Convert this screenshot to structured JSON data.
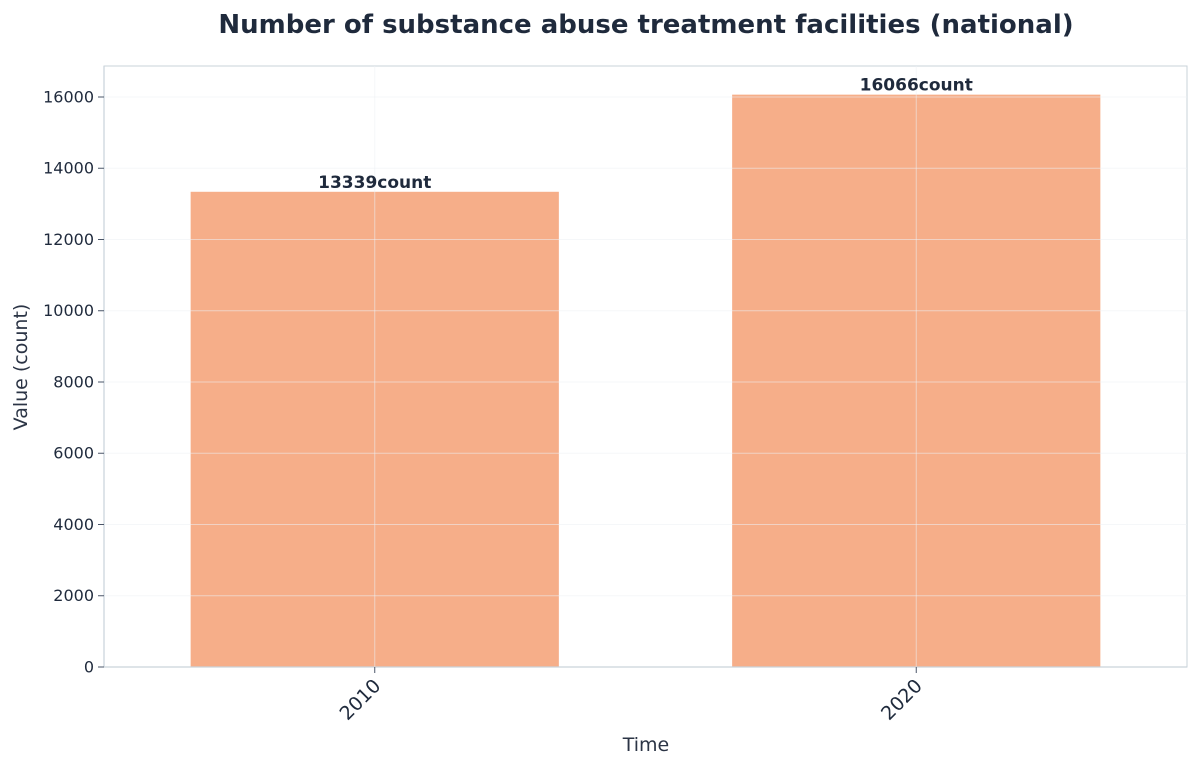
{
  "chart_data": {
    "type": "bar",
    "title": "Number of substance abuse treatment facilities (national)",
    "xlabel": "Time",
    "ylabel": "Value (count)",
    "categories": [
      "2010",
      "2020"
    ],
    "values": [
      13339,
      16066
    ],
    "data_labels": [
      "13339count",
      "16066count"
    ],
    "ylim": [
      0,
      16870
    ],
    "yticks": [
      0,
      2000,
      4000,
      6000,
      8000,
      10000,
      12000,
      14000,
      16000
    ],
    "grid": true,
    "legend": "none",
    "bar_color": "#f6ae89",
    "text_color": "#1f2a3c",
    "axis_color": "#c9d3da",
    "grid_color": "#edf1f4"
  }
}
